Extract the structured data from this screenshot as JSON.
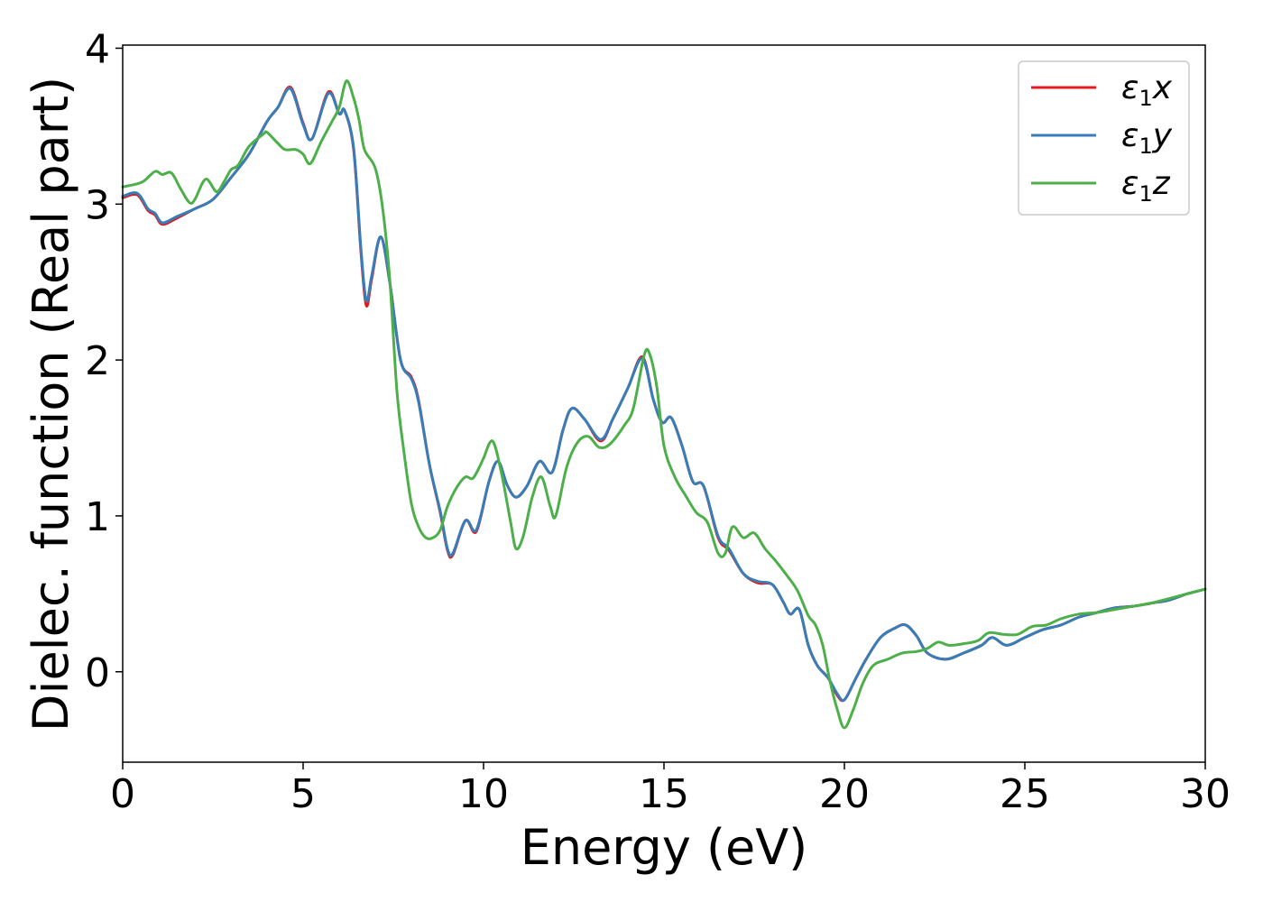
{
  "chart_data": {
    "type": "line",
    "xlabel": "Energy (eV)",
    "ylabel": "Dielec. function (Real part)",
    "xlim": [
      0,
      30
    ],
    "ylim": [
      -0.58,
      4.02
    ],
    "xticks": [
      "0",
      "5",
      "10",
      "15",
      "20",
      "25",
      "30"
    ],
    "yticks": [
      "0",
      "1",
      "2",
      "3",
      "4"
    ],
    "grid": false,
    "legend_position": "top-right",
    "series": [
      {
        "name": "ε1x",
        "legend_symbol": "ε",
        "legend_subscript": "1",
        "legend_suffix": "x",
        "color": "#e41a1c",
        "points": [
          [
            0,
            3.04
          ],
          [
            0.4,
            3.06
          ],
          [
            0.7,
            2.96
          ],
          [
            0.9,
            2.93
          ],
          [
            1.1,
            2.87
          ],
          [
            1.5,
            2.91
          ],
          [
            2.0,
            2.97
          ],
          [
            2.5,
            3.03
          ],
          [
            3.0,
            3.17
          ],
          [
            3.5,
            3.32
          ],
          [
            4.0,
            3.53
          ],
          [
            4.3,
            3.62
          ],
          [
            4.65,
            3.75
          ],
          [
            5.0,
            3.52
          ],
          [
            5.25,
            3.42
          ],
          [
            5.7,
            3.72
          ],
          [
            6.0,
            3.58
          ],
          [
            6.15,
            3.6
          ],
          [
            6.4,
            3.35
          ],
          [
            6.6,
            2.7
          ],
          [
            6.75,
            2.35
          ],
          [
            6.9,
            2.52
          ],
          [
            7.15,
            2.79
          ],
          [
            7.4,
            2.5
          ],
          [
            7.7,
            2.0
          ],
          [
            8.0,
            1.89
          ],
          [
            8.2,
            1.74
          ],
          [
            8.5,
            1.33
          ],
          [
            8.8,
            1.02
          ],
          [
            9.0,
            0.78
          ],
          [
            9.15,
            0.75
          ],
          [
            9.5,
            0.97
          ],
          [
            9.8,
            0.9
          ],
          [
            10.15,
            1.22
          ],
          [
            10.4,
            1.35
          ],
          [
            10.65,
            1.2
          ],
          [
            10.9,
            1.12
          ],
          [
            11.2,
            1.19
          ],
          [
            11.55,
            1.35
          ],
          [
            11.9,
            1.28
          ],
          [
            12.2,
            1.55
          ],
          [
            12.45,
            1.69
          ],
          [
            12.8,
            1.62
          ],
          [
            13.25,
            1.48
          ],
          [
            13.6,
            1.63
          ],
          [
            14.0,
            1.82
          ],
          [
            14.4,
            2.02
          ],
          [
            14.7,
            1.75
          ],
          [
            14.95,
            1.6
          ],
          [
            15.2,
            1.63
          ],
          [
            15.5,
            1.45
          ],
          [
            15.8,
            1.22
          ],
          [
            16.1,
            1.19
          ],
          [
            16.5,
            0.86
          ],
          [
            16.8,
            0.78
          ],
          [
            17.2,
            0.63
          ],
          [
            17.6,
            0.57
          ],
          [
            18.0,
            0.56
          ],
          [
            18.3,
            0.45
          ],
          [
            18.5,
            0.37
          ],
          [
            18.75,
            0.4
          ],
          [
            19.0,
            0.17
          ],
          [
            19.25,
            0.04
          ],
          [
            19.55,
            -0.04
          ],
          [
            19.8,
            -0.15
          ],
          [
            20.0,
            -0.18
          ],
          [
            20.3,
            -0.05
          ],
          [
            20.6,
            0.08
          ],
          [
            21.0,
            0.22
          ],
          [
            21.4,
            0.28
          ],
          [
            21.7,
            0.3
          ],
          [
            22.0,
            0.23
          ],
          [
            22.3,
            0.12
          ],
          [
            22.8,
            0.08
          ],
          [
            23.3,
            0.12
          ],
          [
            23.8,
            0.17
          ],
          [
            24.1,
            0.22
          ],
          [
            24.5,
            0.17
          ],
          [
            25.0,
            0.22
          ],
          [
            25.5,
            0.27
          ],
          [
            26.0,
            0.3
          ],
          [
            26.5,
            0.35
          ],
          [
            27.0,
            0.38
          ],
          [
            27.5,
            0.41
          ],
          [
            28.0,
            0.42
          ],
          [
            28.5,
            0.44
          ],
          [
            29.0,
            0.46
          ],
          [
            29.5,
            0.5
          ],
          [
            30.0,
            0.53
          ]
        ]
      },
      {
        "name": "ε1y",
        "legend_symbol": "ε",
        "legend_subscript": "1",
        "legend_suffix": "y",
        "color": "#377eb8",
        "points": [
          [
            0,
            3.05
          ],
          [
            0.4,
            3.07
          ],
          [
            0.7,
            2.97
          ],
          [
            0.9,
            2.94
          ],
          [
            1.1,
            2.88
          ],
          [
            1.5,
            2.92
          ],
          [
            2.0,
            2.97
          ],
          [
            2.5,
            3.03
          ],
          [
            3.0,
            3.17
          ],
          [
            3.5,
            3.32
          ],
          [
            4.0,
            3.53
          ],
          [
            4.3,
            3.62
          ],
          [
            4.65,
            3.74
          ],
          [
            5.0,
            3.51
          ],
          [
            5.25,
            3.42
          ],
          [
            5.7,
            3.71
          ],
          [
            6.0,
            3.58
          ],
          [
            6.15,
            3.6
          ],
          [
            6.4,
            3.36
          ],
          [
            6.6,
            2.72
          ],
          [
            6.75,
            2.38
          ],
          [
            6.9,
            2.54
          ],
          [
            7.15,
            2.79
          ],
          [
            7.4,
            2.5
          ],
          [
            7.7,
            2.0
          ],
          [
            8.0,
            1.88
          ],
          [
            8.2,
            1.73
          ],
          [
            8.5,
            1.33
          ],
          [
            8.8,
            1.03
          ],
          [
            9.0,
            0.79
          ],
          [
            9.15,
            0.76
          ],
          [
            9.5,
            0.97
          ],
          [
            9.8,
            0.91
          ],
          [
            10.15,
            1.22
          ],
          [
            10.4,
            1.35
          ],
          [
            10.65,
            1.2
          ],
          [
            10.9,
            1.12
          ],
          [
            11.2,
            1.19
          ],
          [
            11.55,
            1.35
          ],
          [
            11.9,
            1.28
          ],
          [
            12.2,
            1.55
          ],
          [
            12.45,
            1.69
          ],
          [
            12.8,
            1.62
          ],
          [
            13.25,
            1.49
          ],
          [
            13.6,
            1.63
          ],
          [
            14.0,
            1.82
          ],
          [
            14.4,
            2.01
          ],
          [
            14.7,
            1.75
          ],
          [
            14.95,
            1.6
          ],
          [
            15.2,
            1.63
          ],
          [
            15.5,
            1.45
          ],
          [
            15.8,
            1.22
          ],
          [
            16.1,
            1.19
          ],
          [
            16.5,
            0.87
          ],
          [
            16.8,
            0.79
          ],
          [
            17.2,
            0.63
          ],
          [
            17.6,
            0.58
          ],
          [
            18.0,
            0.56
          ],
          [
            18.3,
            0.45
          ],
          [
            18.5,
            0.37
          ],
          [
            18.75,
            0.4
          ],
          [
            19.0,
            0.17
          ],
          [
            19.25,
            0.04
          ],
          [
            19.55,
            -0.04
          ],
          [
            19.8,
            -0.14
          ],
          [
            20.0,
            -0.18
          ],
          [
            20.3,
            -0.05
          ],
          [
            20.6,
            0.08
          ],
          [
            21.0,
            0.22
          ],
          [
            21.4,
            0.28
          ],
          [
            21.7,
            0.3
          ],
          [
            22.0,
            0.23
          ],
          [
            22.3,
            0.12
          ],
          [
            22.8,
            0.08
          ],
          [
            23.3,
            0.12
          ],
          [
            23.8,
            0.17
          ],
          [
            24.1,
            0.22
          ],
          [
            24.5,
            0.17
          ],
          [
            25.0,
            0.22
          ],
          [
            25.5,
            0.27
          ],
          [
            26.0,
            0.3
          ],
          [
            26.5,
            0.35
          ],
          [
            27.0,
            0.38
          ],
          [
            27.5,
            0.41
          ],
          [
            28.0,
            0.42
          ],
          [
            28.5,
            0.44
          ],
          [
            29.0,
            0.46
          ],
          [
            29.5,
            0.5
          ],
          [
            30.0,
            0.53
          ]
        ]
      },
      {
        "name": "ε1z",
        "legend_symbol": "ε",
        "legend_subscript": "1",
        "legend_suffix": "z",
        "color": "#4daf4a",
        "points": [
          [
            0,
            3.11
          ],
          [
            0.4,
            3.13
          ],
          [
            0.6,
            3.15
          ],
          [
            0.9,
            3.21
          ],
          [
            1.1,
            3.19
          ],
          [
            1.35,
            3.2
          ],
          [
            1.6,
            3.1
          ],
          [
            1.85,
            3.01
          ],
          [
            2.0,
            3.03
          ],
          [
            2.3,
            3.16
          ],
          [
            2.6,
            3.08
          ],
          [
            2.8,
            3.14
          ],
          [
            3.0,
            3.22
          ],
          [
            3.2,
            3.25
          ],
          [
            3.5,
            3.37
          ],
          [
            3.9,
            3.45
          ],
          [
            4.0,
            3.46
          ],
          [
            4.3,
            3.39
          ],
          [
            4.5,
            3.35
          ],
          [
            4.8,
            3.35
          ],
          [
            5.0,
            3.32
          ],
          [
            5.2,
            3.26
          ],
          [
            5.5,
            3.4
          ],
          [
            5.8,
            3.53
          ],
          [
            6.0,
            3.62
          ],
          [
            6.2,
            3.79
          ],
          [
            6.4,
            3.68
          ],
          [
            6.55,
            3.54
          ],
          [
            6.7,
            3.35
          ],
          [
            7.0,
            3.23
          ],
          [
            7.2,
            2.98
          ],
          [
            7.4,
            2.52
          ],
          [
            7.6,
            1.8
          ],
          [
            7.8,
            1.4
          ],
          [
            8.0,
            1.08
          ],
          [
            8.2,
            0.93
          ],
          [
            8.4,
            0.86
          ],
          [
            8.6,
            0.86
          ],
          [
            8.8,
            0.91
          ],
          [
            9.0,
            1.06
          ],
          [
            9.25,
            1.18
          ],
          [
            9.5,
            1.25
          ],
          [
            9.7,
            1.24
          ],
          [
            9.9,
            1.32
          ],
          [
            10.0,
            1.37
          ],
          [
            10.25,
            1.48
          ],
          [
            10.5,
            1.27
          ],
          [
            10.75,
            0.96
          ],
          [
            10.9,
            0.79
          ],
          [
            11.1,
            0.87
          ],
          [
            11.35,
            1.12
          ],
          [
            11.6,
            1.25
          ],
          [
            11.85,
            1.06
          ],
          [
            12.0,
            1.0
          ],
          [
            12.3,
            1.31
          ],
          [
            12.6,
            1.47
          ],
          [
            12.9,
            1.51
          ],
          [
            13.2,
            1.44
          ],
          [
            13.5,
            1.46
          ],
          [
            13.9,
            1.58
          ],
          [
            14.15,
            1.69
          ],
          [
            14.45,
            2.03
          ],
          [
            14.6,
            2.04
          ],
          [
            14.8,
            1.83
          ],
          [
            15.0,
            1.45
          ],
          [
            15.3,
            1.25
          ],
          [
            15.6,
            1.13
          ],
          [
            15.9,
            1.02
          ],
          [
            16.2,
            0.96
          ],
          [
            16.5,
            0.76
          ],
          [
            16.7,
            0.76
          ],
          [
            16.9,
            0.93
          ],
          [
            17.2,
            0.86
          ],
          [
            17.5,
            0.89
          ],
          [
            17.8,
            0.79
          ],
          [
            18.1,
            0.71
          ],
          [
            18.4,
            0.62
          ],
          [
            18.7,
            0.52
          ],
          [
            19.0,
            0.36
          ],
          [
            19.2,
            0.3
          ],
          [
            19.4,
            0.17
          ],
          [
            19.6,
            -0.06
          ],
          [
            19.8,
            -0.24
          ],
          [
            20.0,
            -0.36
          ],
          [
            20.25,
            -0.24
          ],
          [
            20.5,
            -0.08
          ],
          [
            20.8,
            0.04
          ],
          [
            21.2,
            0.08
          ],
          [
            21.6,
            0.12
          ],
          [
            22.0,
            0.13
          ],
          [
            22.3,
            0.15
          ],
          [
            22.6,
            0.19
          ],
          [
            22.9,
            0.17
          ],
          [
            23.3,
            0.18
          ],
          [
            23.7,
            0.2
          ],
          [
            24.0,
            0.25
          ],
          [
            24.4,
            0.24
          ],
          [
            24.8,
            0.24
          ],
          [
            25.2,
            0.29
          ],
          [
            25.6,
            0.3
          ],
          [
            26.0,
            0.34
          ],
          [
            26.5,
            0.37
          ],
          [
            27.0,
            0.38
          ],
          [
            27.5,
            0.4
          ],
          [
            28.0,
            0.42
          ],
          [
            28.5,
            0.44
          ],
          [
            29.0,
            0.47
          ],
          [
            29.5,
            0.5
          ],
          [
            30.0,
            0.53
          ]
        ]
      }
    ]
  }
}
